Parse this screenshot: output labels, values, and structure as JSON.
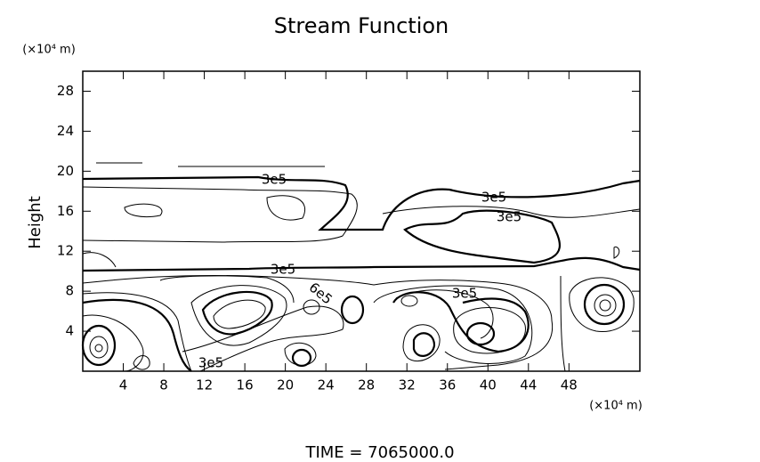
{
  "chart_data": {
    "type": "contour",
    "title": "Stream Function",
    "y_label": "Height",
    "y_unit": "(×10⁴ m)",
    "x_unit": "(×10⁴ m)",
    "footer": "TIME  =  7065000.0",
    "xlim": [
      0,
      55
    ],
    "xticks": [
      4,
      8,
      12,
      16,
      20,
      24,
      28,
      32,
      36,
      40,
      44,
      48
    ],
    "ylim": [
      0,
      30
    ],
    "yticks": [
      4,
      8,
      12,
      16,
      20,
      24,
      28
    ],
    "annotations": [
      "3e5",
      "3e5",
      "3e5",
      "3e5",
      "3e5",
      "3e5",
      "6e5"
    ]
  }
}
